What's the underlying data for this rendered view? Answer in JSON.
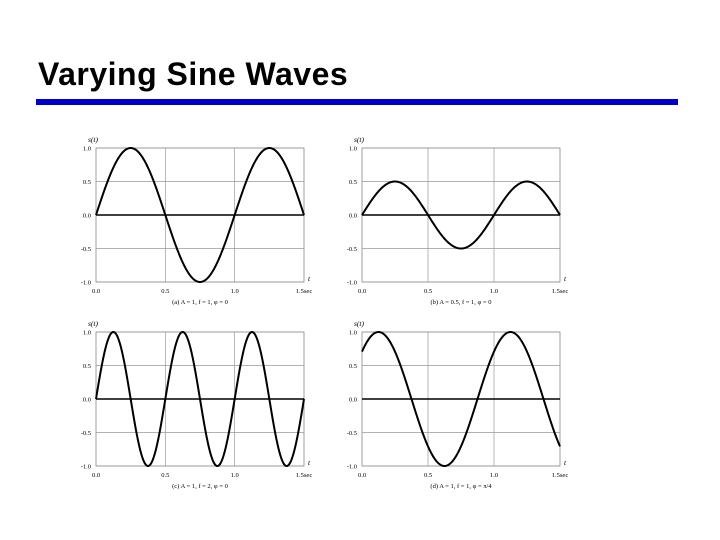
{
  "slide": {
    "title": "Varying Sine Waves",
    "accent_color": "#0000cc"
  },
  "chart_data": [
    {
      "type": "line",
      "function": "A*sin(2*pi*f*t + phi)",
      "params": {
        "A": 1,
        "f": 1,
        "phi": 0
      },
      "ylabel": "s(t)",
      "xlabel": "t",
      "xlim": [
        0,
        1.5
      ],
      "ylim": [
        -1,
        1
      ],
      "xticks": [
        "0.0",
        "0.5",
        "1.0",
        "1.5sec"
      ],
      "yticks": [
        "1.0",
        "0.5",
        "0.0",
        "-0.5",
        "-1.0"
      ],
      "caption": "(a) A = 1, f = 1, φ = 0",
      "grid": true
    },
    {
      "type": "line",
      "function": "A*sin(2*pi*f*t + phi)",
      "params": {
        "A": 0.5,
        "f": 1,
        "phi": 0
      },
      "ylabel": "s(t)",
      "xlabel": "t",
      "xlim": [
        0,
        1.5
      ],
      "ylim": [
        -1,
        1
      ],
      "xticks": [
        "0.0",
        "0.5",
        "1.0",
        "1.5sec"
      ],
      "yticks": [
        "1.0",
        "0.5",
        "0.0",
        "-0.5",
        "-1.0"
      ],
      "caption": "(b) A = 0.5, f = 1, φ = 0",
      "grid": true
    },
    {
      "type": "line",
      "function": "A*sin(2*pi*f*t + phi)",
      "params": {
        "A": 1,
        "f": 2,
        "phi": 0
      },
      "ylabel": "s(t)",
      "xlabel": "t",
      "xlim": [
        0,
        1.5
      ],
      "ylim": [
        -1,
        1
      ],
      "xticks": [
        "0.0",
        "0.5",
        "1.0",
        "1.5sec"
      ],
      "yticks": [
        "1.0",
        "0.5",
        "0.0",
        "-0.5",
        "-1.0"
      ],
      "caption": "(c) A = 1, f = 2, φ = 0",
      "grid": true
    },
    {
      "type": "line",
      "function": "A*sin(2*pi*f*t + phi)",
      "params": {
        "A": 1,
        "f": 1,
        "phi": 0.7854
      },
      "ylabel": "s(t)",
      "xlabel": "t",
      "xlim": [
        0,
        1.5
      ],
      "ylim": [
        -1,
        1
      ],
      "xticks": [
        "0.0",
        "0.5",
        "1.0",
        "1.5sec"
      ],
      "yticks": [
        "1.0",
        "0.5",
        "0.0",
        "-0.5",
        "-1.0"
      ],
      "caption": "(d) A = 1, f = 1, φ = π/4",
      "grid": true
    }
  ]
}
